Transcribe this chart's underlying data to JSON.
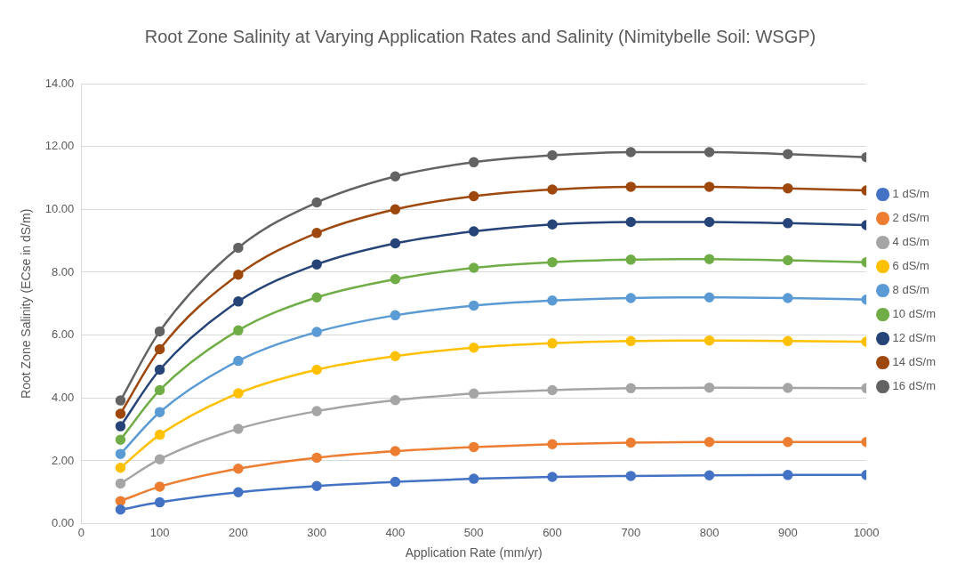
{
  "chart_data": {
    "type": "line",
    "title": "Root Zone Salinity at Varying Application Rates and Salinity (Nimitybelle Soil: WSGP)",
    "xlabel": "Application Rate (mm/yr)",
    "ylabel": "Root Zone Salinity (ECse in dS/m)",
    "x": [
      50,
      100,
      200,
      300,
      400,
      500,
      600,
      700,
      800,
      900,
      1000
    ],
    "series": [
      {
        "name": "1 dS/m",
        "color": "#4472c4",
        "values": [
          0.45,
          0.68,
          1.0,
          1.2,
          1.33,
          1.43,
          1.49,
          1.52,
          1.54,
          1.55,
          1.55
        ]
      },
      {
        "name": "2 dS/m",
        "color": "#ed7d31",
        "values": [
          0.72,
          1.18,
          1.75,
          2.1,
          2.31,
          2.44,
          2.53,
          2.58,
          2.6,
          2.6,
          2.6
        ]
      },
      {
        "name": "4 dS/m",
        "color": "#a5a5a5",
        "values": [
          1.28,
          2.05,
          3.02,
          3.58,
          3.93,
          4.14,
          4.25,
          4.31,
          4.33,
          4.32,
          4.31
        ]
      },
      {
        "name": "6 dS/m",
        "color": "#ffc000",
        "values": [
          1.78,
          2.83,
          4.15,
          4.9,
          5.33,
          5.6,
          5.74,
          5.81,
          5.83,
          5.81,
          5.79
        ]
      },
      {
        "name": "8 dS/m",
        "color": "#5b9bd5",
        "values": [
          2.22,
          3.55,
          5.18,
          6.1,
          6.63,
          6.94,
          7.1,
          7.18,
          7.2,
          7.18,
          7.13
        ]
      },
      {
        "name": "10 dS/m",
        "color": "#70ad47",
        "values": [
          2.67,
          4.25,
          6.15,
          7.2,
          7.78,
          8.14,
          8.32,
          8.4,
          8.42,
          8.38,
          8.32
        ]
      },
      {
        "name": "12 dS/m",
        "color": "#264478",
        "values": [
          3.1,
          4.9,
          7.07,
          8.25,
          8.92,
          9.3,
          9.52,
          9.6,
          9.6,
          9.56,
          9.5
        ]
      },
      {
        "name": "14 dS/m",
        "color": "#9e480e",
        "values": [
          3.5,
          5.55,
          7.92,
          9.25,
          10.0,
          10.42,
          10.63,
          10.72,
          10.72,
          10.67,
          10.6
        ]
      },
      {
        "name": "16 dS/m",
        "color": "#636363",
        "values": [
          3.92,
          6.12,
          8.78,
          10.22,
          11.05,
          11.5,
          11.72,
          11.82,
          11.82,
          11.76,
          11.66
        ]
      }
    ],
    "xlim": [
      0,
      1000
    ],
    "xticks": [
      0,
      100,
      200,
      300,
      400,
      500,
      600,
      700,
      800,
      900,
      1000
    ],
    "ylim": [
      0,
      14
    ],
    "yticks": [
      {
        "value": 0,
        "label": "0.00"
      },
      {
        "value": 2,
        "label": "2.00"
      },
      {
        "value": 4,
        "label": "4.00"
      },
      {
        "value": 6,
        "label": "6.00"
      },
      {
        "value": 8,
        "label": "8.00"
      },
      {
        "value": 10,
        "label": "10.00"
      },
      {
        "value": 12,
        "label": "12.00"
      },
      {
        "value": 14,
        "label": "14.00"
      }
    ],
    "grid": "y",
    "legend": "right",
    "marker": "circle",
    "line_style": "solid"
  }
}
